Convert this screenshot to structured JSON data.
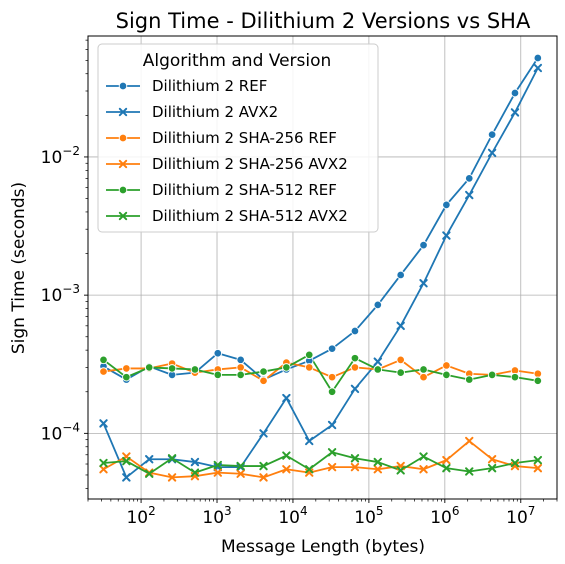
{
  "chart_data": {
    "type": "line",
    "title": "Sign Time - Dilithium 2 Versions vs SHA",
    "xlabel": "Message Length (bytes)",
    "ylabel": "Sign Time (seconds)",
    "x_scale": "log",
    "y_scale": "log",
    "xlim": [
      20,
      30000000
    ],
    "ylim": [
      3.35e-05,
      0.075
    ],
    "x_ticks": [
      {
        "value": 100,
        "base": "10",
        "exp": "2"
      },
      {
        "value": 1000,
        "base": "10",
        "exp": "3"
      },
      {
        "value": 10000,
        "base": "10",
        "exp": "4"
      },
      {
        "value": 100000,
        "base": "10",
        "exp": "5"
      },
      {
        "value": 1000000,
        "base": "10",
        "exp": "6"
      },
      {
        "value": 10000000,
        "base": "10",
        "exp": "7"
      }
    ],
    "y_ticks": [
      {
        "value": 0.0001,
        "base": "10",
        "exp": "−4"
      },
      {
        "value": 0.001,
        "base": "10",
        "exp": "−3"
      },
      {
        "value": 0.01,
        "base": "10",
        "exp": "−2"
      }
    ],
    "grid": true,
    "legend": {
      "title": "Algorithm and Version",
      "position": "top-left"
    },
    "x": [
      32,
      64,
      128,
      256,
      512,
      1024,
      2048,
      4096,
      8192,
      16384,
      32768,
      65536,
      131072,
      262144,
      524288,
      1048576,
      2097152,
      4194304,
      8388608,
      16777216
    ],
    "series": [
      {
        "name": "Dilithium 2 REF",
        "color": "#1f77b4",
        "marker": "circle",
        "values": [
          0.000305,
          0.000245,
          0.000305,
          0.000265,
          0.000275,
          0.00038,
          0.00034,
          0.000245,
          0.00029,
          0.000335,
          0.00041,
          0.00055,
          0.00085,
          0.0014,
          0.0023,
          0.0045,
          0.007,
          0.0145,
          0.029,
          0.052
        ]
      },
      {
        "name": "Dilithium 2 AVX2",
        "color": "#1f77b4",
        "marker": "x",
        "values": [
          0.000118,
          4.8e-05,
          6.5e-05,
          6.5e-05,
          6.2e-05,
          5.7e-05,
          5.7e-05,
          0.0001,
          0.00018,
          8.8e-05,
          0.000115,
          0.00021,
          0.00033,
          0.0006,
          0.00122,
          0.0027,
          0.0053,
          0.0107,
          0.021,
          0.044
        ]
      },
      {
        "name": "Dilithium 2 SHA-256 REF",
        "color": "#ff7f0e",
        "marker": "circle",
        "values": [
          0.00028,
          0.000295,
          0.000295,
          0.00032,
          0.000275,
          0.00029,
          0.0003,
          0.00024,
          0.000325,
          0.0003,
          0.000255,
          0.0003,
          0.00029,
          0.00034,
          0.000255,
          0.00031,
          0.00027,
          0.000265,
          0.000285,
          0.00027
        ]
      },
      {
        "name": "Dilithium 2 SHA-256 AVX2",
        "color": "#ff7f0e",
        "marker": "x",
        "values": [
          5.5e-05,
          6.8e-05,
          5.2e-05,
          4.8e-05,
          4.9e-05,
          5.2e-05,
          5.1e-05,
          4.8e-05,
          5.5e-05,
          5.2e-05,
          5.7e-05,
          5.7e-05,
          5.5e-05,
          5.8e-05,
          5.5e-05,
          6.4e-05,
          8.8e-05,
          6.5e-05,
          5.8e-05,
          5.6e-05
        ]
      },
      {
        "name": "Dilithium 2 SHA-512 REF",
        "color": "#2ca02c",
        "marker": "circle",
        "values": [
          0.00034,
          0.000255,
          0.0003,
          0.000295,
          0.00029,
          0.000265,
          0.000265,
          0.00028,
          0.0003,
          0.00037,
          0.0002,
          0.00035,
          0.00029,
          0.000275,
          0.00029,
          0.000265,
          0.000245,
          0.000265,
          0.000255,
          0.00024
        ]
      },
      {
        "name": "Dilithium 2 SHA-512 AVX2",
        "color": "#2ca02c",
        "marker": "x",
        "values": [
          6.1e-05,
          6.3e-05,
          5.1e-05,
          6.6e-05,
          5.2e-05,
          5.9e-05,
          5.8e-05,
          5.8e-05,
          6.9e-05,
          5.5e-05,
          7.3e-05,
          6.6e-05,
          6.2e-05,
          5.4e-05,
          6.8e-05,
          5.6e-05,
          5.3e-05,
          5.6e-05,
          6.1e-05,
          6.4e-05
        ]
      }
    ]
  }
}
